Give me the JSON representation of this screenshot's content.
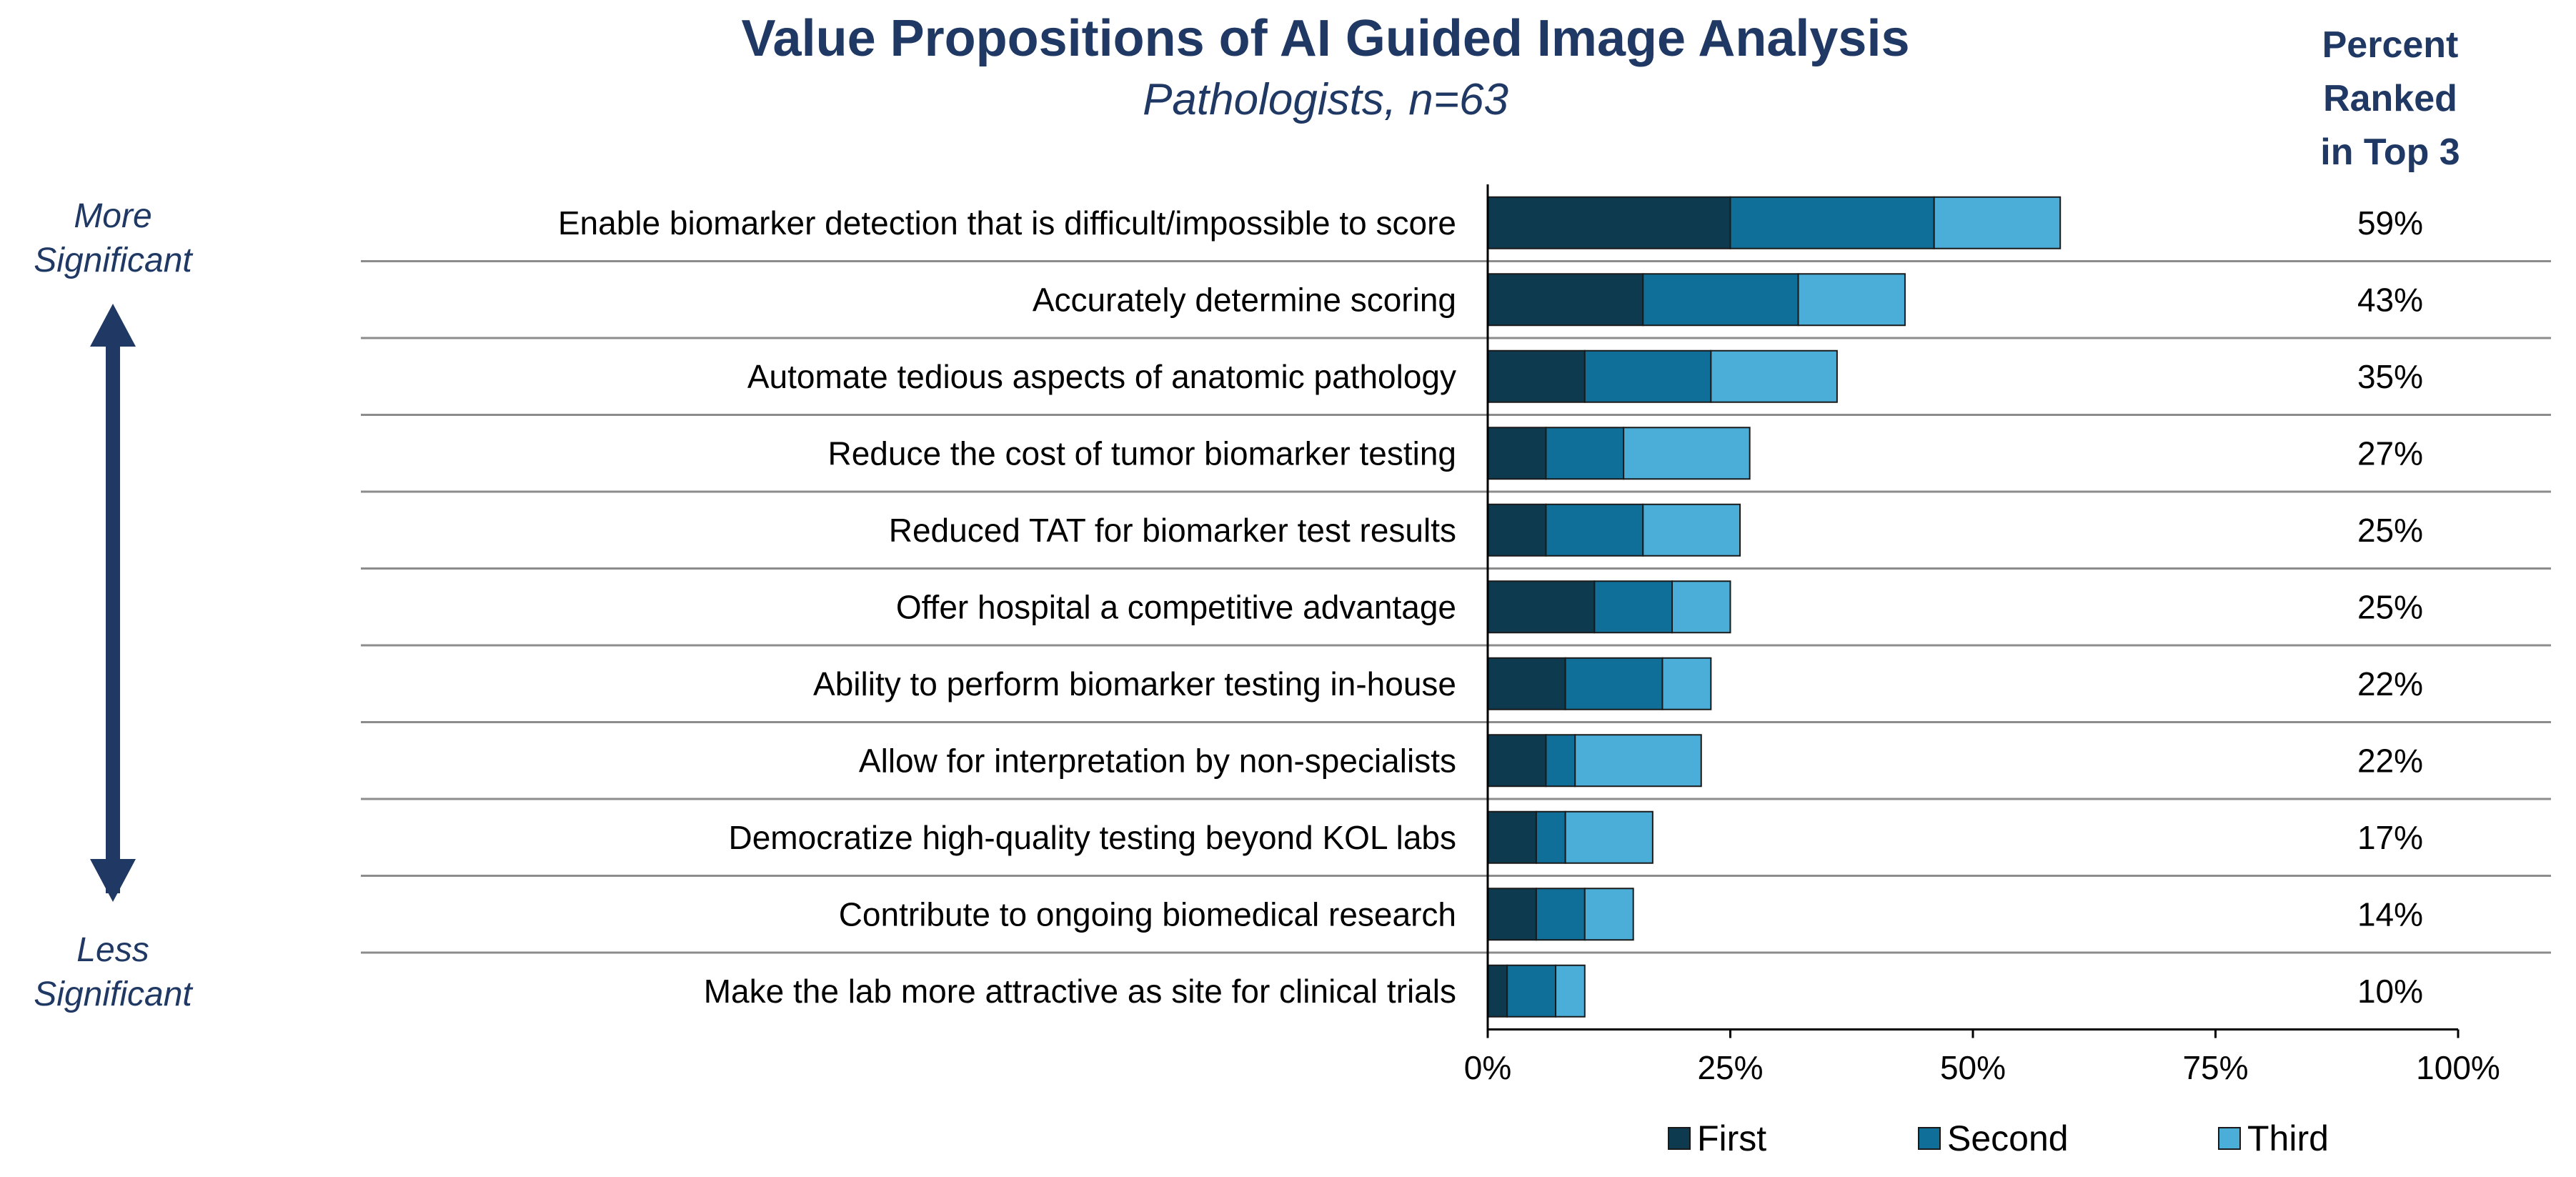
{
  "chart_data": {
    "type": "bar",
    "orientation": "horizontal",
    "stacked": true,
    "title": "Value Propositions of AI Guided Image Analysis",
    "subtitle": "Pathologists, n=63",
    "categories": [
      "Enable biomarker detection that is difficult/impossible to score",
      "Accurately determine scoring",
      "Automate tedious aspects of anatomic pathology",
      "Reduce the cost of tumor biomarker testing",
      "Reduced TAT for biomarker test results",
      "Offer hospital a competitive advantage",
      "Ability to perform biomarker testing in-house",
      "Allow for interpretation by non-specialists",
      "Democratize high-quality testing beyond KOL labs",
      "Contribute to ongoing biomedical research",
      "Make the lab more attractive as site for clinical trials"
    ],
    "series": [
      {
        "name": "First",
        "color": "#0d3a4f",
        "values": [
          25,
          16,
          10,
          6,
          6,
          11,
          8,
          6,
          5,
          5,
          2
        ]
      },
      {
        "name": "Second",
        "color": "#0f6f99",
        "values": [
          21,
          16,
          13,
          8,
          10,
          8,
          10,
          3,
          3,
          5,
          5
        ]
      },
      {
        "name": "Third",
        "color": "#4aaed8",
        "values": [
          13,
          11,
          13,
          13,
          10,
          6,
          5,
          13,
          9,
          5,
          3
        ]
      }
    ],
    "percent_header": [
      "Percent",
      "Ranked",
      "in Top 3"
    ],
    "percent_labels": [
      "59%",
      "43%",
      "35%",
      "27%",
      "25%",
      "25%",
      "22%",
      "22%",
      "17%",
      "14%",
      "10%"
    ],
    "xlim": [
      0,
      100
    ],
    "x_ticks": [
      0,
      25,
      50,
      75,
      100
    ],
    "x_tick_labels": [
      "0%",
      "25%",
      "50%",
      "75%",
      "100%"
    ],
    "legend_position": "bottom",
    "significance": {
      "top": [
        "More",
        "Significant"
      ],
      "bottom": [
        "Less",
        "Significant"
      ]
    }
  }
}
